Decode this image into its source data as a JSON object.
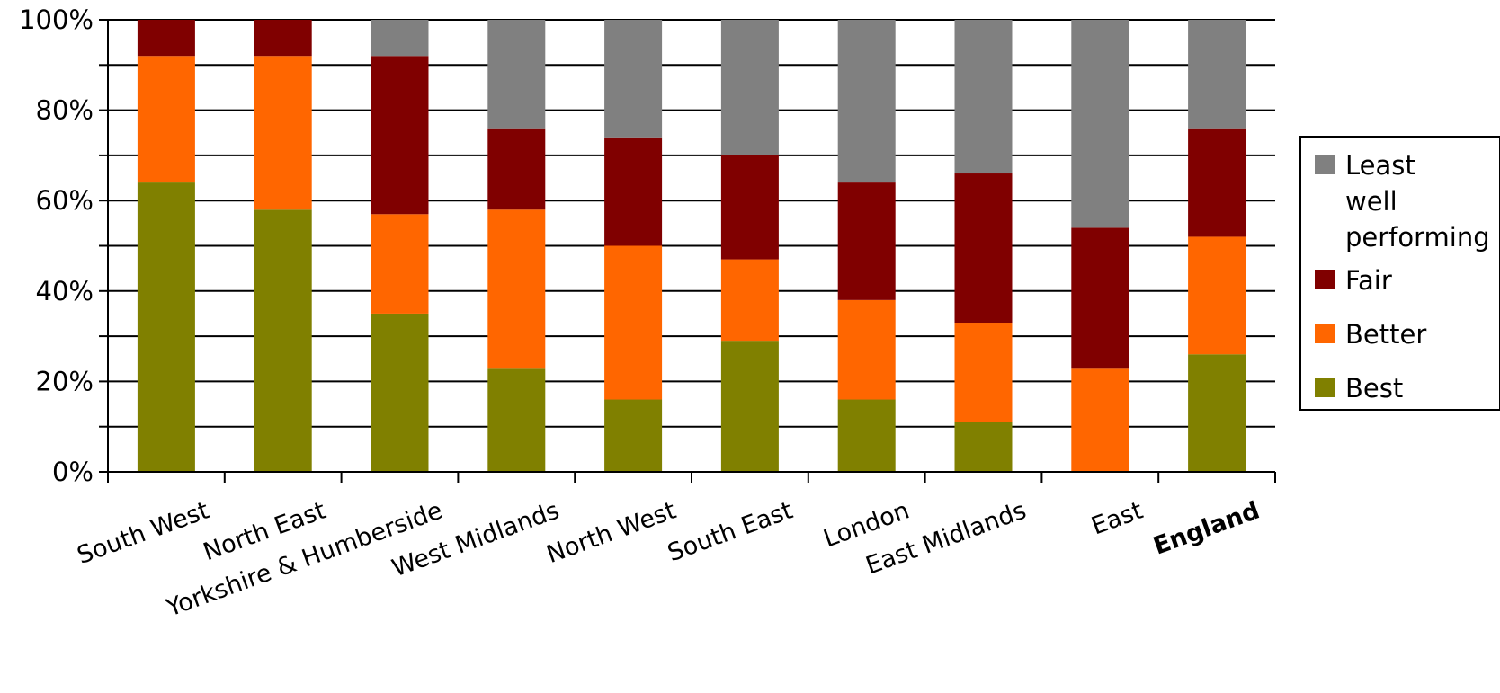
{
  "chart_data": {
    "type": "bar",
    "stacked": true,
    "percent_axis": true,
    "title": "",
    "xlabel": "",
    "ylabel": "",
    "ylim": [
      0,
      100
    ],
    "yticks": [
      "0%",
      "20%",
      "40%",
      "60%",
      "80%",
      "100%"
    ],
    "grid": true,
    "legend_position": "right",
    "categories": [
      "South West",
      "North East",
      "Yorkshire & Humberside",
      "West Midlands",
      "North West",
      "South East",
      "London",
      "East Midlands",
      "East",
      "England"
    ],
    "bold_categories": [
      "England"
    ],
    "series": [
      {
        "name": "Best",
        "color": "#808000",
        "values": [
          64,
          58,
          35,
          23,
          16,
          29,
          16,
          11,
          0,
          26
        ]
      },
      {
        "name": "Better",
        "color": "#ff6600",
        "values": [
          28,
          34,
          22,
          35,
          34,
          18,
          22,
          22,
          23,
          26
        ]
      },
      {
        "name": "Fair",
        "color": "#800000",
        "values": [
          8,
          8,
          35,
          18,
          24,
          23,
          26,
          33,
          31,
          24
        ]
      },
      {
        "name": "Least well performing",
        "color": "#808080",
        "values": [
          0,
          0,
          8,
          24,
          26,
          30,
          36,
          34,
          46,
          24
        ]
      }
    ],
    "legend_order": [
      "Least well performing",
      "Fair",
      "Better",
      "Best"
    ],
    "legend_lines": {
      "Least well performing": [
        "Least",
        "well",
        "performing"
      ],
      "Fair": [
        "Fair"
      ],
      "Better": [
        "Better"
      ],
      "Best": [
        "Best"
      ]
    }
  }
}
